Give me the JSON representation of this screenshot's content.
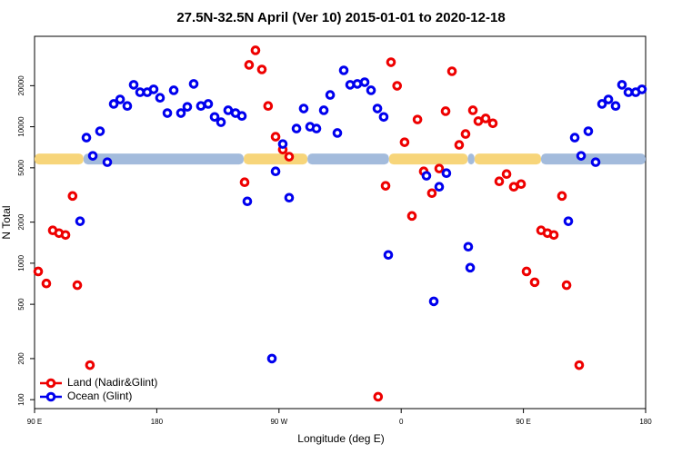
{
  "chart_data": {
    "type": "scatter",
    "title": "27.5N-32.5N April (Ver 10)   2015-01-01 to 2020-12-18",
    "xlabel": "Longitude (deg E)",
    "ylabel": "N Total",
    "xlim": [
      90,
      540
    ],
    "ylim": [
      86,
      46000
    ],
    "log_y": true,
    "legend": "lower left",
    "xticks": [
      {
        "value": 90,
        "label": "90 E"
      },
      180,
      {
        "value": 270,
        "label": "90 W"
      },
      {
        "value": 360,
        "label": "0"
      },
      {
        "value": 450,
        "label": "90 E"
      },
      {
        "value": 540,
        "label": "180"
      }
    ],
    "yticks": [
      100,
      200,
      500,
      1000,
      2000,
      5000,
      10000,
      20000
    ],
    "band": {
      "y": 5800,
      "segments": [
        {
          "xlim": [
            90,
            126
          ],
          "color": "#f7d57a"
        },
        {
          "xlim": [
            126,
            244
          ],
          "color": "#a3bbdc"
        },
        {
          "xlim": [
            244,
            291
          ],
          "color": "#f7d57a"
        },
        {
          "xlim": [
            291,
            351
          ],
          "color": "#a3bbdc"
        },
        {
          "xlim": [
            351,
            409
          ],
          "color": "#f7d57a"
        },
        {
          "xlim": [
            409,
            414
          ],
          "color": "#a3bbdc"
        },
        {
          "xlim": [
            414,
            463
          ],
          "color": "#f7d57a"
        },
        {
          "xlim": [
            463,
            540
          ],
          "color": "#a3bbdc"
        }
      ]
    },
    "series": [
      {
        "name": "Land (Nadir&Glint)",
        "color": "#ee0000",
        "x": [
          92.7,
          98.7,
          103.4,
          108,
          112.8,
          118,
          121.5,
          130.8,
          244.7,
          248,
          252.7,
          257.4,
          262,
          267.5,
          272.8,
          277.5,
          343,
          348.5,
          352.5,
          357,
          362.5,
          367.9,
          372,
          376.6,
          382.6,
          388,
          392.7,
          397.4,
          402.7,
          407.4,
          412.8,
          416.8,
          422.2,
          427.5,
          432.2,
          437.6,
          442.9,
          448.3,
          452.3,
          458.3,
          463,
          467.7,
          472.4,
          478.4,
          481.8,
          491.1
        ],
        "values": [
          870,
          710,
          1740,
          1660,
          1610,
          3110,
          690,
          179,
          3920,
          28400,
          36300,
          26300,
          14200,
          8450,
          6800,
          6030,
          105,
          3690,
          29700,
          19950,
          7700,
          2220,
          11300,
          4710,
          3260,
          4940,
          13000,
          25500,
          7360,
          8850,
          13200,
          11000,
          11500,
          10600,
          3980,
          4500,
          3630,
          3800,
          870,
          725,
          1740,
          1660,
          1610,
          3110,
          690,
          179
        ]
      },
      {
        "name": "Ocean (Glint)",
        "color": "#0000ee",
        "x": [
          123.5,
          128.2,
          132.9,
          138.2,
          143.6,
          148.3,
          153,
          158.3,
          163,
          167.7,
          173,
          177.7,
          182.4,
          187.8,
          192.5,
          197.8,
          202.5,
          207.2,
          212.5,
          217.9,
          222.6,
          227.3,
          232.6,
          238,
          242.7,
          246.7,
          264.8,
          267.5,
          272.8,
          277.5,
          282.9,
          288.2,
          292.9,
          297.6,
          303,
          307.7,
          313,
          317.7,
          322.4,
          327.7,
          333.1,
          337.8,
          342.5,
          347.1,
          350.5,
          378.6,
          384,
          388,
          393.3,
          409.4,
          410.8,
          483.1,
          487.8,
          492.5,
          497.8,
          503.2,
          507.9,
          512.6,
          517.9,
          522.6,
          527.3,
          532.7,
          537.3
        ],
        "values": [
          2030,
          8320,
          6120,
          9270,
          5500,
          14700,
          15850,
          14200,
          20300,
          17900,
          17900,
          18800,
          16300,
          12600,
          18500,
          12600,
          14000,
          20600,
          14200,
          14700,
          11800,
          10800,
          13200,
          12600,
          12000,
          2840,
          200,
          4710,
          7470,
          3020,
          9700,
          13600,
          10000,
          9700,
          13200,
          17100,
          9000,
          25900,
          20300,
          20600,
          21200,
          18500,
          13600,
          11800,
          1150,
          4370,
          525,
          3630,
          4570,
          1320,
          927,
          2030,
          8320,
          6120,
          9270,
          5500,
          14700,
          15850,
          14200,
          20300,
          17900,
          17900,
          18800
        ]
      }
    ]
  }
}
